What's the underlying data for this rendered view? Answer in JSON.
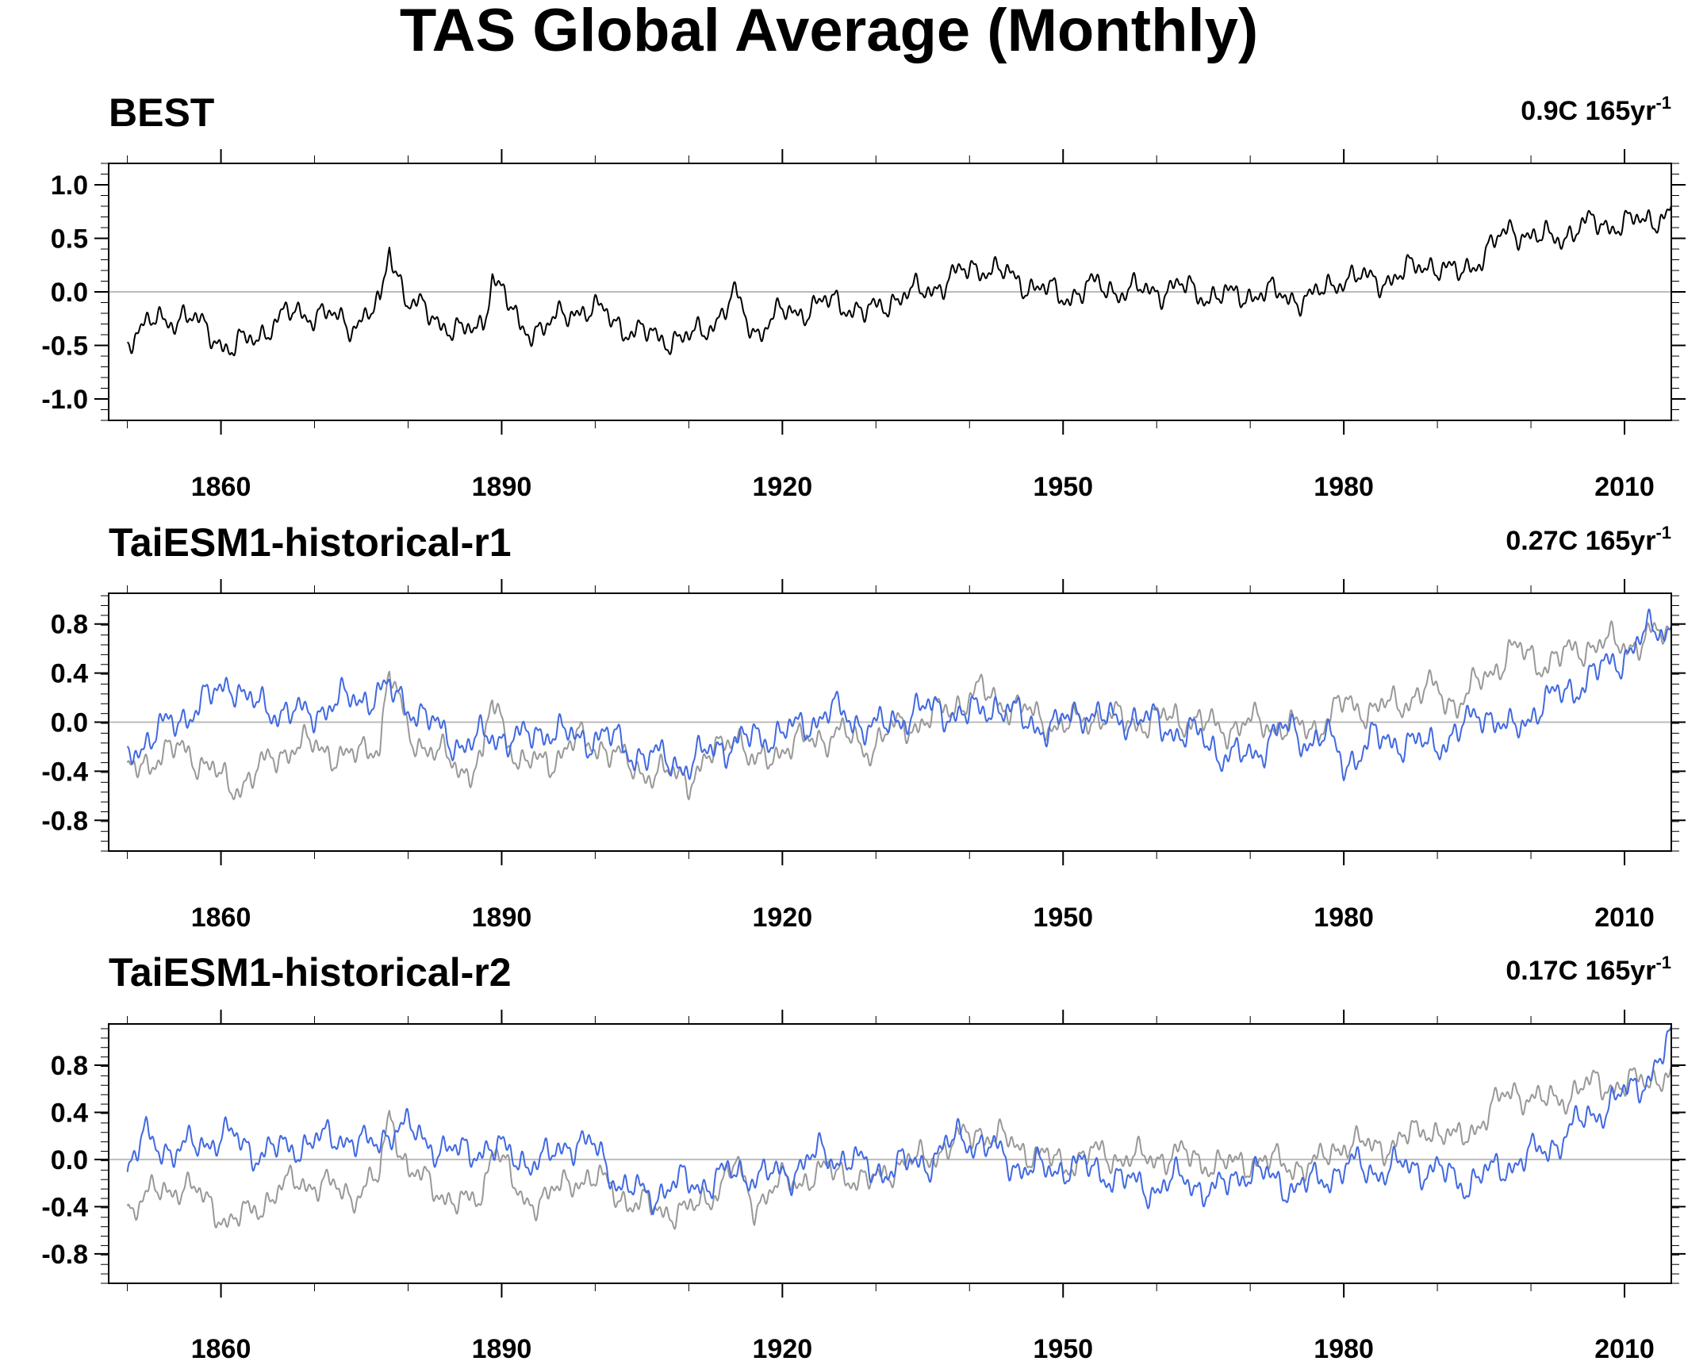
{
  "figure": {
    "title": "TAS Global Average (Monthly)"
  },
  "colors": {
    "observed": "#000000",
    "observed_ref": "#999999",
    "model": "#4169e1",
    "zero_line": "#bbbbbb",
    "axis": "#000000"
  },
  "chart_data": [
    {
      "type": "line",
      "title": "BEST",
      "trend_label": "0.9C 165yr",
      "trend_superscript": "-1",
      "xlabel": "",
      "ylabel": "",
      "xlim": [
        1848,
        2015
      ],
      "ylim": [
        -1.2,
        1.2
      ],
      "xticks": [
        1860,
        1890,
        1920,
        1950,
        1980,
        2010
      ],
      "xtick_labels": [
        "1860",
        "1890",
        "1920",
        "1950",
        "1980",
        "2010"
      ],
      "yticks": [
        1.0,
        0.5,
        0.0,
        -0.5,
        -1.0
      ],
      "ytick_labels": [
        "1.0",
        "0.5",
        "0.0",
        "-0.5",
        "-1.0"
      ],
      "zero_line": true,
      "series": [
        {
          "color": "#000000",
          "x": [
            1850,
            1853,
            1856,
            1859,
            1861,
            1863,
            1866,
            1868,
            1871,
            1874,
            1877,
            1878,
            1880,
            1883,
            1886,
            1888,
            1889,
            1892,
            1895,
            1898,
            1901,
            1904,
            1907,
            1910,
            1913,
            1915,
            1917,
            1920,
            1923,
            1926,
            1929,
            1932,
            1935,
            1938,
            1941,
            1944,
            1947,
            1950,
            1953,
            1956,
            1959,
            1962,
            1965,
            1968,
            1971,
            1974,
            1977,
            1980,
            1983,
            1986,
            1989,
            1992,
            1995,
            1998,
            2001,
            2004,
            2007,
            2010,
            2013,
            2015
          ],
          "y": [
            -0.42,
            -0.28,
            -0.22,
            -0.38,
            -0.55,
            -0.45,
            -0.28,
            -0.18,
            -0.22,
            -0.3,
            -0.15,
            0.42,
            -0.1,
            -0.25,
            -0.4,
            -0.3,
            0.18,
            -0.35,
            -0.32,
            -0.15,
            -0.2,
            -0.38,
            -0.42,
            -0.45,
            -0.25,
            -0.05,
            -0.38,
            -0.2,
            -0.15,
            -0.08,
            -0.22,
            -0.05,
            0.0,
            0.12,
            0.25,
            0.15,
            0.05,
            -0.05,
            0.05,
            0.02,
            0.0,
            0.05,
            -0.02,
            -0.05,
            0.0,
            -0.05,
            -0.05,
            0.15,
            0.1,
            0.15,
            0.28,
            0.15,
            0.35,
            0.6,
            0.48,
            0.55,
            0.65,
            0.62,
            0.7,
            0.72
          ]
        }
      ]
    },
    {
      "type": "line",
      "title": "TaiESM1-historical-r1",
      "trend_label": "0.27C 165yr",
      "trend_superscript": "-1",
      "xlabel": "",
      "ylabel": "",
      "xlim": [
        1848,
        2015
      ],
      "ylim": [
        -1.05,
        1.05
      ],
      "xticks": [
        1860,
        1890,
        1920,
        1950,
        1980,
        2010
      ],
      "xtick_labels": [
        "1860",
        "1890",
        "1920",
        "1950",
        "1980",
        "2010"
      ],
      "yticks": [
        0.8,
        0.4,
        0.0,
        -0.4,
        -0.8
      ],
      "ytick_labels": [
        "0.8",
        "0.4",
        "0.0",
        "-0.4",
        "-0.8"
      ],
      "zero_line": true,
      "series": [
        {
          "color": "#999999",
          "x": [
            1850,
            1853,
            1856,
            1859,
            1861,
            1863,
            1866,
            1868,
            1871,
            1874,
            1877,
            1878,
            1880,
            1883,
            1886,
            1888,
            1889,
            1892,
            1895,
            1898,
            1901,
            1904,
            1907,
            1910,
            1913,
            1915,
            1917,
            1920,
            1923,
            1926,
            1929,
            1932,
            1935,
            1938,
            1941,
            1944,
            1947,
            1950,
            1953,
            1956,
            1959,
            1962,
            1965,
            1968,
            1971,
            1974,
            1977,
            1980,
            1983,
            1986,
            1989,
            1992,
            1995,
            1998,
            2001,
            2004,
            2007,
            2010,
            2013,
            2015
          ],
          "y": [
            -0.42,
            -0.28,
            -0.22,
            -0.38,
            -0.55,
            -0.45,
            -0.28,
            -0.18,
            -0.22,
            -0.3,
            -0.15,
            0.42,
            -0.1,
            -0.25,
            -0.4,
            -0.3,
            0.18,
            -0.35,
            -0.32,
            -0.15,
            -0.2,
            -0.38,
            -0.42,
            -0.45,
            -0.25,
            -0.05,
            -0.38,
            -0.2,
            -0.15,
            -0.08,
            -0.22,
            -0.05,
            0.0,
            0.12,
            0.25,
            0.15,
            0.05,
            -0.05,
            0.05,
            0.02,
            0.0,
            0.05,
            -0.02,
            -0.05,
            0.0,
            -0.05,
            -0.05,
            0.15,
            0.1,
            0.15,
            0.28,
            0.15,
            0.35,
            0.6,
            0.48,
            0.55,
            0.65,
            0.62,
            0.7,
            0.72
          ]
        },
        {
          "color": "#4169e1",
          "x": [
            1850,
            1853,
            1856,
            1859,
            1861,
            1863,
            1866,
            1869,
            1872,
            1875,
            1878,
            1880,
            1883,
            1886,
            1889,
            1892,
            1895,
            1898,
            1901,
            1904,
            1907,
            1910,
            1913,
            1916,
            1919,
            1922,
            1925,
            1928,
            1931,
            1934,
            1937,
            1940,
            1943,
            1946,
            1949,
            1952,
            1955,
            1958,
            1961,
            1964,
            1967,
            1970,
            1973,
            1976,
            1978,
            1980,
            1983,
            1986,
            1989,
            1992,
            1995,
            1998,
            2001,
            2004,
            2007,
            2010,
            2013,
            2015
          ],
          "y": [
            -0.25,
            -0.1,
            0.05,
            0.2,
            0.35,
            0.15,
            0.1,
            0.05,
            0.15,
            0.2,
            0.25,
            0.15,
            -0.05,
            -0.2,
            -0.1,
            -0.15,
            -0.05,
            -0.15,
            -0.1,
            -0.25,
            -0.3,
            -0.35,
            -0.2,
            -0.15,
            -0.1,
            -0.05,
            0.1,
            0.0,
            -0.05,
            0.1,
            0.1,
            0.05,
            0.15,
            0.0,
            -0.05,
            0.1,
            0.0,
            0.05,
            -0.05,
            -0.1,
            -0.25,
            -0.3,
            -0.05,
            -0.15,
            -0.1,
            -0.35,
            -0.15,
            -0.15,
            -0.2,
            -0.1,
            0.1,
            -0.1,
            0.15,
            0.25,
            0.4,
            0.55,
            0.75,
            0.78
          ]
        }
      ]
    },
    {
      "type": "line",
      "title": "TaiESM1-historical-r2",
      "trend_label": "0.17C 165yr",
      "trend_superscript": "-1",
      "xlabel": "",
      "ylabel": "",
      "xlim": [
        1848,
        2015
      ],
      "ylim": [
        -1.05,
        1.15
      ],
      "xticks": [
        1860,
        1890,
        1920,
        1950,
        1980,
        2010
      ],
      "xtick_labels": [
        "1860",
        "1890",
        "1920",
        "1950",
        "1980",
        "2010"
      ],
      "yticks": [
        0.8,
        0.4,
        0.0,
        -0.4,
        -0.8
      ],
      "ytick_labels": [
        "0.8",
        "0.4",
        "0.0",
        "-0.4",
        "-0.8"
      ],
      "zero_line": true,
      "series": [
        {
          "color": "#999999",
          "x": [
            1850,
            1853,
            1856,
            1859,
            1861,
            1863,
            1866,
            1868,
            1871,
            1874,
            1877,
            1878,
            1880,
            1883,
            1886,
            1888,
            1889,
            1892,
            1895,
            1898,
            1901,
            1904,
            1907,
            1910,
            1913,
            1915,
            1917,
            1920,
            1923,
            1926,
            1929,
            1932,
            1935,
            1938,
            1941,
            1944,
            1947,
            1950,
            1953,
            1956,
            1959,
            1962,
            1965,
            1968,
            1971,
            1974,
            1977,
            1980,
            1983,
            1986,
            1989,
            1992,
            1995,
            1998,
            2001,
            2004,
            2007,
            2010,
            2013,
            2015
          ],
          "y": [
            -0.42,
            -0.28,
            -0.22,
            -0.38,
            -0.55,
            -0.45,
            -0.28,
            -0.18,
            -0.22,
            -0.3,
            -0.15,
            0.42,
            -0.1,
            -0.25,
            -0.4,
            -0.3,
            0.18,
            -0.35,
            -0.32,
            -0.15,
            -0.2,
            -0.38,
            -0.42,
            -0.45,
            -0.25,
            -0.05,
            -0.38,
            -0.2,
            -0.15,
            -0.08,
            -0.22,
            -0.05,
            0.0,
            0.12,
            0.25,
            0.15,
            0.05,
            -0.05,
            0.05,
            0.02,
            0.0,
            0.05,
            -0.02,
            -0.05,
            0.0,
            -0.05,
            -0.05,
            0.15,
            0.1,
            0.15,
            0.28,
            0.15,
            0.35,
            0.6,
            0.48,
            0.55,
            0.65,
            0.62,
            0.7,
            0.72
          ]
        },
        {
          "color": "#4169e1",
          "x": [
            1850,
            1852,
            1855,
            1858,
            1861,
            1864,
            1867,
            1870,
            1873,
            1876,
            1879,
            1882,
            1885,
            1888,
            1891,
            1894,
            1897,
            1900,
            1903,
            1906,
            1909,
            1912,
            1915,
            1918,
            1921,
            1924,
            1927,
            1930,
            1933,
            1936,
            1939,
            1942,
            1945,
            1948,
            1951,
            1954,
            1957,
            1960,
            1963,
            1966,
            1969,
            1972,
            1975,
            1978,
            1981,
            1984,
            1987,
            1990,
            1993,
            1996,
            1999,
            2002,
            2005,
            2008,
            2011,
            2013,
            2015
          ],
          "y": [
            -0.1,
            0.2,
            0.05,
            0.15,
            0.2,
            0.05,
            0.1,
            0.15,
            0.2,
            0.1,
            0.3,
            0.15,
            0.05,
            0.1,
            0.05,
            -0.05,
            0.15,
            0.1,
            -0.25,
            -0.3,
            -0.2,
            -0.2,
            -0.1,
            -0.15,
            -0.1,
            0.05,
            0.0,
            -0.1,
            -0.05,
            0.0,
            0.2,
            0.1,
            -0.05,
            -0.1,
            -0.05,
            -0.1,
            -0.2,
            -0.25,
            -0.15,
            -0.3,
            -0.1,
            -0.15,
            -0.25,
            -0.15,
            -0.05,
            -0.1,
            -0.05,
            -0.1,
            -0.2,
            -0.1,
            0.0,
            0.1,
            0.3,
            0.45,
            0.6,
            0.75,
            1.0
          ]
        }
      ]
    }
  ]
}
